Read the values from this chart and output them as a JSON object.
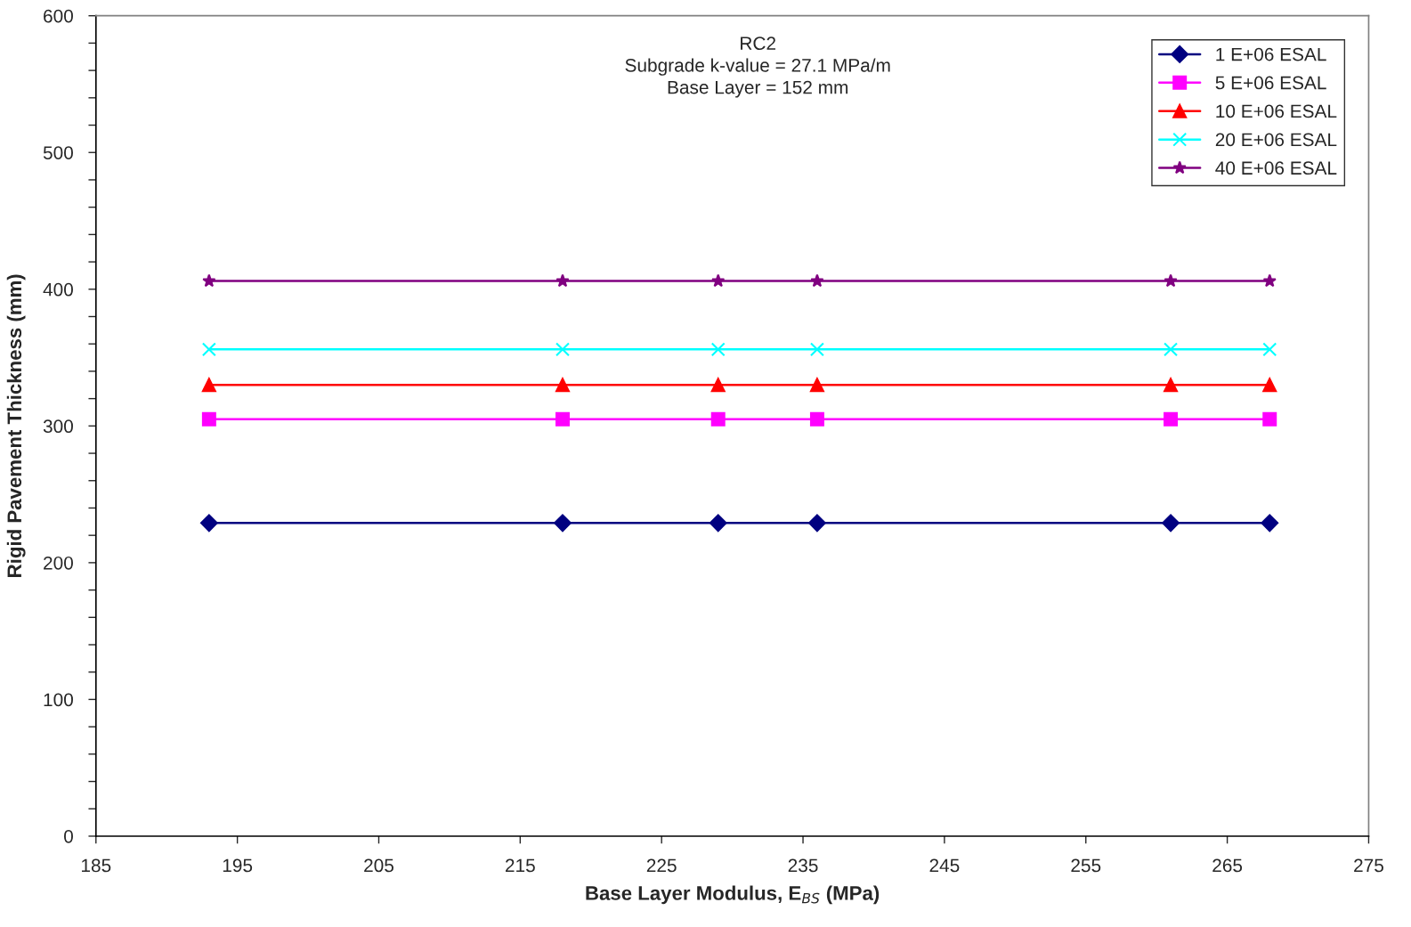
{
  "chart_data": {
    "type": "line",
    "title": "RC2\nSubgrade k-value = 27.1 MPa/m\nBase Layer = 152 mm",
    "xlabel": "Base Layer Modulus, E$_{BS}$ (MPa)",
    "ylabel": "Rigid Pavement Thickness (mm)",
    "x": [
      193,
      218,
      229,
      236,
      261,
      268
    ],
    "series": [
      {
        "name": "1 E+06 ESAL",
        "color": "#000080",
        "marker": "diamond",
        "values": [
          229,
          229,
          229,
          229,
          229,
          229
        ]
      },
      {
        "name": "5 E+06 ESAL",
        "color": "#ff00ff",
        "marker": "square",
        "values": [
          305,
          305,
          305,
          305,
          305,
          305
        ]
      },
      {
        "name": "10 E+06 ESAL",
        "color": "#ff0000",
        "marker": "triangle",
        "values": [
          330,
          330,
          330,
          330,
          330,
          330
        ]
      },
      {
        "name": "20 E+06 ESAL",
        "color": "#00ffff",
        "marker": "cross",
        "values": [
          356,
          356,
          356,
          356,
          356,
          356
        ]
      },
      {
        "name": "40 E+06 ESAL",
        "color": "#800080",
        "marker": "star",
        "values": [
          406,
          406,
          406,
          406,
          406,
          406
        ]
      }
    ],
    "xlim": [
      185,
      275
    ],
    "xticks": [
      185,
      195,
      205,
      215,
      225,
      235,
      245,
      255,
      265,
      275
    ],
    "ylim": [
      0,
      600
    ],
    "yticks": [
      0,
      {
        "value": 20,
        "label": null
      },
      {
        "value": 40,
        "label": null
      },
      {
        "value": 60,
        "label": null
      },
      {
        "value": 80,
        "label": null
      },
      100,
      {
        "value": 120,
        "label": null
      },
      {
        "value": 140,
        "label": null
      },
      {
        "value": 160,
        "label": null
      },
      {
        "value": 180,
        "label": null
      },
      200,
      {
        "value": 220,
        "label": null
      },
      {
        "value": 240,
        "label": null
      },
      {
        "value": 260,
        "label": null
      },
      {
        "value": 280,
        "label": null
      },
      300,
      {
        "value": 320,
        "label": null
      },
      {
        "value": 340,
        "label": null
      },
      {
        "value": 360,
        "label": null
      },
      {
        "value": 380,
        "label": null
      },
      400,
      {
        "value": 420,
        "label": null
      },
      {
        "value": 440,
        "label": null
      },
      {
        "value": 460,
        "label": null
      },
      {
        "value": 480,
        "label": null
      },
      500,
      {
        "value": 520,
        "label": null
      },
      {
        "value": 540,
        "label": null
      },
      {
        "value": 560,
        "label": null
      },
      {
        "value": 580,
        "label": null
      },
      600
    ],
    "grid": false,
    "legend": "top right",
    "line_style": "solid"
  }
}
